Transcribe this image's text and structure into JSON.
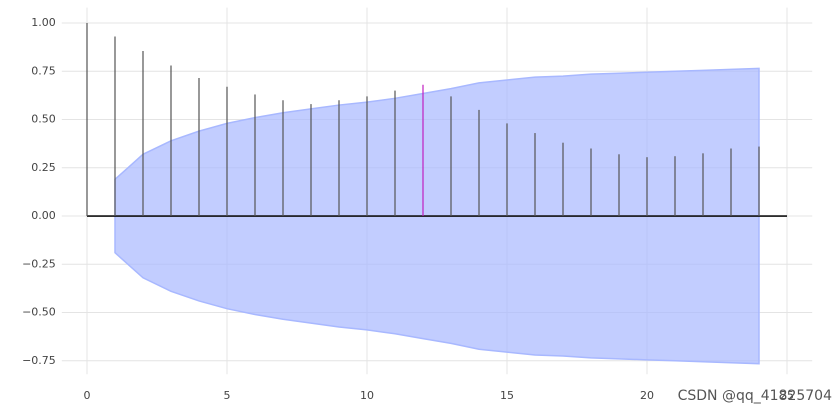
{
  "chart_data": {
    "type": "stem",
    "x": [
      0,
      1,
      2,
      3,
      4,
      5,
      6,
      7,
      8,
      9,
      10,
      11,
      12,
      13,
      14,
      15,
      16,
      17,
      18,
      19,
      20,
      21,
      22,
      23,
      24
    ],
    "values": [
      1.0,
      0.93,
      0.855,
      0.78,
      0.715,
      0.67,
      0.63,
      0.6,
      0.58,
      0.6,
      0.62,
      0.65,
      0.68,
      0.62,
      0.55,
      0.48,
      0.43,
      0.38,
      0.35,
      0.32,
      0.305,
      0.31,
      0.325,
      0.35,
      0.36
    ],
    "colors": [
      "#555555",
      "#555555",
      "#555555",
      "#555555",
      "#555555",
      "#555555",
      "#555555",
      "#555555",
      "#555555",
      "#555555",
      "#555555",
      "#555555",
      "#c020c0",
      "#555555",
      "#555555",
      "#555555",
      "#555555",
      "#555555",
      "#555555",
      "#555555",
      "#555555",
      "#555555",
      "#555555",
      "#555555",
      "#555555"
    ],
    "band_upper": [
      null,
      0.19,
      0.32,
      0.39,
      0.44,
      0.48,
      0.51,
      0.535,
      0.555,
      0.575,
      0.59,
      0.61,
      0.635,
      0.66,
      0.69,
      0.705,
      0.72,
      0.725,
      0.735,
      0.74,
      0.745,
      0.75,
      0.755,
      0.76,
      0.765
    ],
    "band_lower": [
      null,
      -0.19,
      -0.32,
      -0.39,
      -0.44,
      -0.48,
      -0.51,
      -0.535,
      -0.555,
      -0.575,
      -0.59,
      -0.61,
      -0.635,
      -0.66,
      -0.69,
      -0.705,
      -0.72,
      -0.725,
      -0.735,
      -0.74,
      -0.745,
      -0.75,
      -0.755,
      -0.76,
      -0.765
    ],
    "band_color": "#a8b8ff",
    "xlim": [
      -0.9,
      25.9
    ],
    "ylim": [
      -0.82,
      1.08
    ],
    "xticks": [
      0,
      5,
      10,
      15,
      20,
      25
    ],
    "yticks": [
      {
        "value": -0.75,
        "label": "−0.75"
      },
      {
        "value": -0.5,
        "label": "−0.50"
      },
      {
        "value": -0.25,
        "label": "−0.25"
      },
      {
        "value": 0,
        "label": "0.00"
      },
      {
        "value": 0.25,
        "label": "0.25"
      },
      {
        "value": 0.5,
        "label": "0.50"
      },
      {
        "value": 0.75,
        "label": "0.75"
      },
      {
        "value": 1,
        "label": "1.00"
      }
    ],
    "grid": true,
    "watermark": "CSDN @qq_41825704"
  }
}
